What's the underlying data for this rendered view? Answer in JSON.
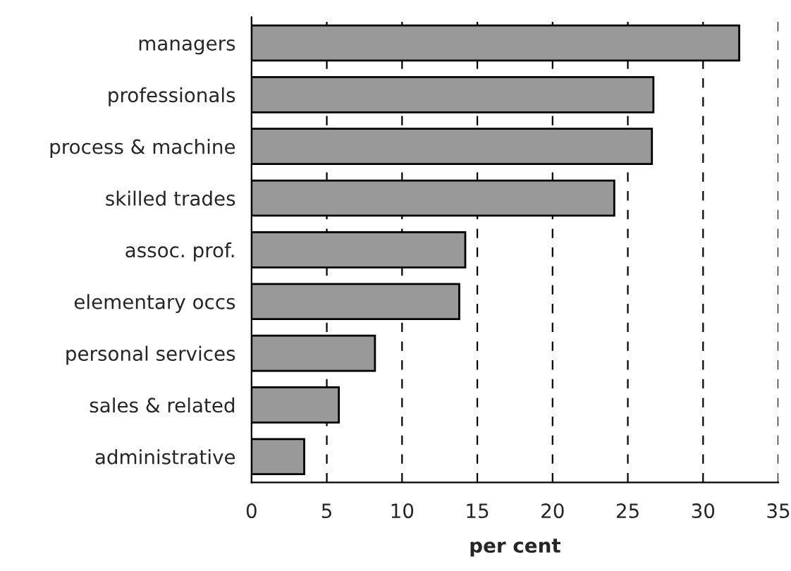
{
  "chart_data": {
    "type": "bar",
    "orientation": "horizontal",
    "xlabel": "per cent",
    "categories": [
      "managers",
      "professionals",
      "process & machine",
      "skilled trades",
      "assoc. prof.",
      "elementary occs",
      "personal services",
      "sales & related",
      "administrative"
    ],
    "values": [
      32.4,
      26.7,
      26.6,
      24.1,
      14.2,
      13.8,
      8.2,
      5.8,
      3.5
    ],
    "color": "#999999",
    "xlim": [
      0,
      35
    ],
    "xticks": [
      0,
      5,
      10,
      15,
      20,
      25,
      30,
      35
    ],
    "grid": "x"
  }
}
